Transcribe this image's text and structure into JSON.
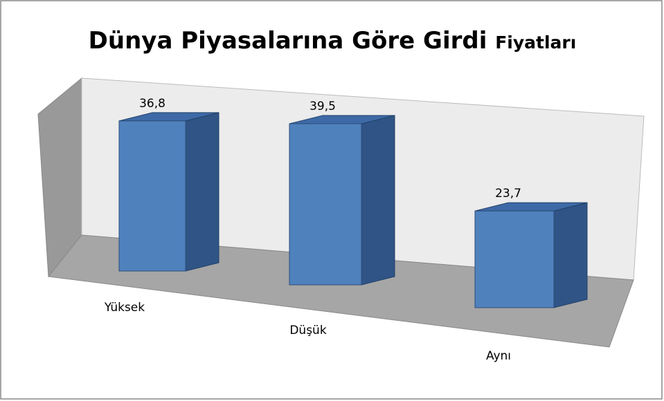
{
  "chart_data": {
    "type": "bar3d",
    "title": [
      "Dünya Piyasalarına Göre Girdi",
      "Fiyatları"
    ],
    "categories": [
      "Yüksek",
      "Düşük",
      "Aynı"
    ],
    "values": [
      36.8,
      39.5,
      23.7
    ],
    "value_labels": [
      "36,8",
      "39,5",
      "23,7"
    ],
    "color": "#4f81bd"
  }
}
